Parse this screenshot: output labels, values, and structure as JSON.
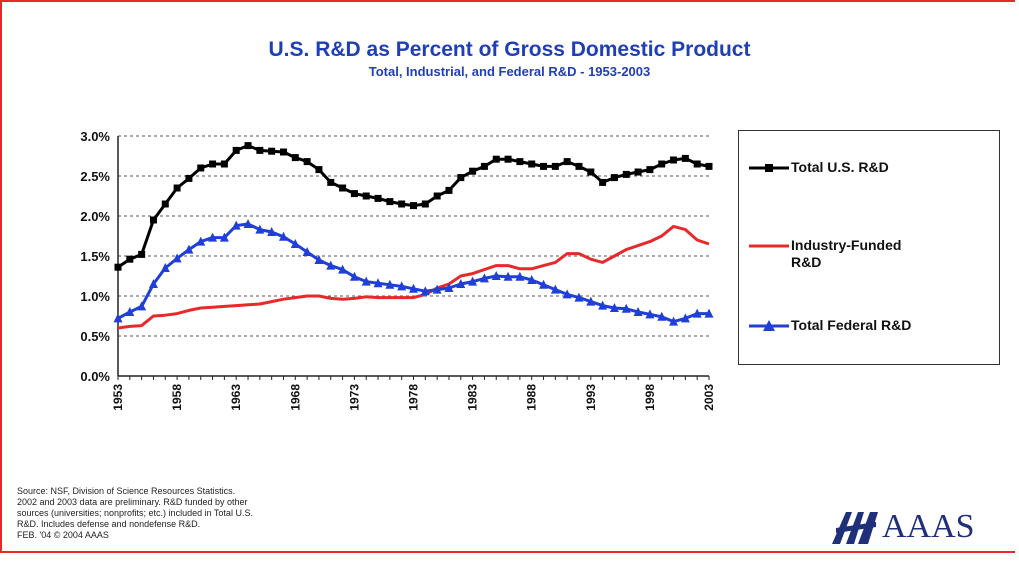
{
  "chart_data": {
    "type": "line",
    "title": "U.S. R&D as Percent of Gross Domestic Product",
    "subtitle": "Total, Industrial, and Federal R&D - 1953-2003",
    "xlabel": "",
    "ylabel": "",
    "ylim": [
      0,
      3.0
    ],
    "yticks": [
      "0.0%",
      "0.5%",
      "1.0%",
      "1.5%",
      "2.0%",
      "2.5%",
      "3.0%"
    ],
    "xticks": [
      "1953",
      "1958",
      "1963",
      "1968",
      "1973",
      "1978",
      "1983",
      "1988",
      "1993",
      "1998",
      "2003"
    ],
    "x": [
      1953,
      1954,
      1955,
      1956,
      1957,
      1958,
      1959,
      1960,
      1961,
      1962,
      1963,
      1964,
      1965,
      1966,
      1967,
      1968,
      1969,
      1970,
      1971,
      1972,
      1973,
      1974,
      1975,
      1976,
      1977,
      1978,
      1979,
      1980,
      1981,
      1982,
      1983,
      1984,
      1985,
      1986,
      1987,
      1988,
      1989,
      1990,
      1991,
      1992,
      1993,
      1994,
      1995,
      1996,
      1997,
      1998,
      1999,
      2000,
      2001,
      2002,
      2003
    ],
    "grid": true,
    "legend_position": "right",
    "series": [
      {
        "name": "Total U.S. R&D",
        "color": "#000000",
        "marker": "square",
        "values": [
          1.36,
          1.46,
          1.52,
          1.95,
          2.15,
          2.35,
          2.47,
          2.6,
          2.65,
          2.65,
          2.82,
          2.88,
          2.82,
          2.81,
          2.8,
          2.73,
          2.68,
          2.58,
          2.42,
          2.35,
          2.28,
          2.25,
          2.22,
          2.18,
          2.15,
          2.13,
          2.15,
          2.25,
          2.32,
          2.48,
          2.56,
          2.62,
          2.71,
          2.71,
          2.68,
          2.65,
          2.62,
          2.62,
          2.68,
          2.62,
          2.55,
          2.42,
          2.48,
          2.52,
          2.55,
          2.58,
          2.65,
          2.7,
          2.72,
          2.65,
          2.62
        ]
      },
      {
        "name": "Industry-Funded R&D",
        "color": "#e8292b",
        "marker": "none",
        "values": [
          0.6,
          0.62,
          0.63,
          0.75,
          0.76,
          0.78,
          0.82,
          0.85,
          0.86,
          0.87,
          0.88,
          0.89,
          0.9,
          0.93,
          0.96,
          0.98,
          1.0,
          1.0,
          0.97,
          0.96,
          0.97,
          0.99,
          0.98,
          0.98,
          0.98,
          0.98,
          1.02,
          1.1,
          1.15,
          1.25,
          1.28,
          1.33,
          1.38,
          1.38,
          1.34,
          1.34,
          1.38,
          1.42,
          1.53,
          1.53,
          1.46,
          1.42,
          1.5,
          1.58,
          1.63,
          1.68,
          1.75,
          1.87,
          1.83,
          1.7,
          1.65
        ]
      },
      {
        "name": "Total Federal R&D",
        "color": "#1f3fd8",
        "marker": "triangle",
        "values": [
          0.72,
          0.8,
          0.87,
          1.15,
          1.35,
          1.47,
          1.58,
          1.68,
          1.73,
          1.73,
          1.88,
          1.9,
          1.83,
          1.8,
          1.74,
          1.65,
          1.55,
          1.45,
          1.38,
          1.33,
          1.24,
          1.18,
          1.16,
          1.14,
          1.12,
          1.09,
          1.06,
          1.08,
          1.1,
          1.15,
          1.18,
          1.22,
          1.25,
          1.24,
          1.24,
          1.2,
          1.14,
          1.08,
          1.02,
          0.98,
          0.93,
          0.88,
          0.85,
          0.84,
          0.8,
          0.77,
          0.74,
          0.68,
          0.72,
          0.78,
          0.78
        ]
      }
    ]
  },
  "legend": {
    "items": [
      {
        "label_lines": [
          "Total U.S. R&D"
        ]
      },
      {
        "label_lines": [
          "Industry-Funded",
          "R&D"
        ]
      },
      {
        "label_lines": [
          "Total Federal R&D"
        ]
      }
    ]
  },
  "source": {
    "lines": [
      "Source: NSF, Division of Science Resources Statistics.",
      "2002 and 2003 data are preliminary. R&D funded by other",
      "sources (universities; nonprofits; etc.) included in Total U.S.",
      "R&D. Includes defense and nondefense R&D.",
      "FEB. '04 © 2004 AAAS"
    ]
  },
  "logo": {
    "text": "AAAS",
    "color": "#1f2f7a"
  }
}
